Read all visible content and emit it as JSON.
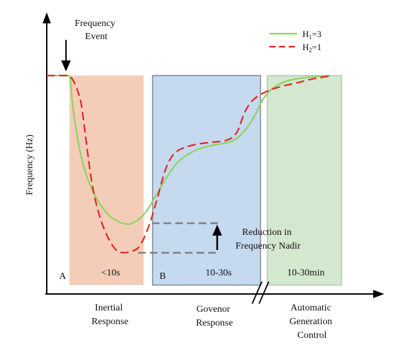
{
  "annotations": {
    "frequency_event": [
      "Frequency",
      "Event"
    ],
    "reduction_nadir": [
      "Reduction in",
      "Frequency Nadir"
    ]
  },
  "axes": {
    "ylabel": "Frequency (Hz)"
  },
  "legend": {
    "h1": {
      "main": "H",
      "sub": "1",
      "suffix": "=3",
      "color": "#8dd35f",
      "style": "solid"
    },
    "h2": {
      "main": "H",
      "sub": "2",
      "suffix": "=1",
      "color": "#e8231c",
      "style": "dashed"
    }
  },
  "regions": [
    {
      "id": "inertial",
      "corner_label": "A",
      "time_label": "<10s",
      "caption": [
        "Inertial",
        "Response"
      ],
      "fill": "#f4cdb9",
      "stroke": "none"
    },
    {
      "id": "governor",
      "corner_label": "B",
      "time_label": "10-30s",
      "caption": [
        "Govenor",
        "Response"
      ],
      "fill": "#c5d9ef",
      "stroke": "#7f8a95"
    },
    {
      "id": "agc",
      "corner_label": "",
      "time_label": "10-30min",
      "caption": [
        "Automatic",
        "Generation",
        "Control"
      ],
      "fill": "#d4e8cf",
      "stroke": "#b8c4b5"
    }
  ],
  "colors": {
    "axis": "#000000",
    "nadir_guides": "#808080"
  }
}
